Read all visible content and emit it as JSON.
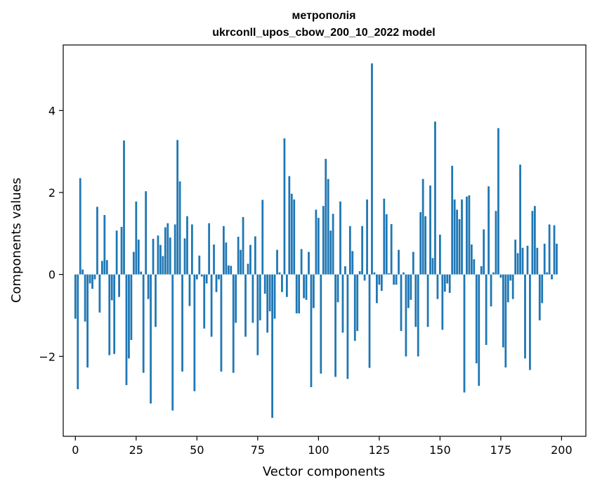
{
  "chart_data": {
    "type": "bar",
    "title": "метрополія",
    "subtitle": "ukrconll_upos_cbow_200_10_2022 model",
    "xlabel": "Vector components",
    "ylabel": "Components values",
    "xlim": [
      -5,
      210
    ],
    "ylim": [
      -3.95,
      5.6
    ],
    "xticks": [
      0,
      25,
      50,
      75,
      100,
      125,
      150,
      175,
      200
    ],
    "yticks": [
      -2,
      0,
      2,
      4
    ],
    "ytick_labels": [
      "−2",
      "0",
      "2",
      "4"
    ],
    "bar_color": "#1f77b4",
    "grid": false,
    "values": [
      -1.08,
      -2.8,
      2.35,
      0.12,
      -1.15,
      -2.27,
      -0.22,
      -0.35,
      -0.12,
      1.65,
      -0.93,
      0.33,
      1.45,
      0.35,
      -1.97,
      -0.63,
      -1.94,
      1.07,
      -0.55,
      1.16,
      3.27,
      -2.7,
      -2.05,
      -1.6,
      0.55,
      1.78,
      0.85,
      0.07,
      -2.4,
      2.03,
      -0.6,
      -3.15,
      0.87,
      -1.28,
      0.95,
      0.72,
      0.45,
      1.15,
      1.25,
      0.9,
      -3.32,
      1.22,
      3.28,
      2.27,
      -2.37,
      0.88,
      1.42,
      -0.77,
      1.22,
      -2.85,
      -0.12,
      0.46,
      -0.05,
      -1.32,
      -0.22,
      1.25,
      -1.52,
      0.73,
      -0.43,
      -0.12,
      -2.37,
      1.18,
      0.78,
      0.22,
      0.21,
      -2.4,
      -1.18,
      0.92,
      0.6,
      1.4,
      -1.52,
      0.26,
      0.72,
      -1.18,
      0.93,
      -1.97,
      -1.12,
      1.82,
      -0.47,
      -1.42,
      -0.9,
      -3.5,
      -1.08,
      0.6,
      0.05,
      -0.43,
      3.32,
      -0.55,
      2.4,
      1.97,
      1.83,
      -0.95,
      -0.95,
      0.62,
      -0.58,
      -0.62,
      0.55,
      -2.75,
      -0.82,
      1.58,
      1.38,
      -2.42,
      1.67,
      2.82,
      2.33,
      1.07,
      1.48,
      -2.5,
      -0.68,
      1.78,
      -1.42,
      0.2,
      -2.55,
      1.18,
      0.57,
      -1.62,
      -1.38,
      0.08,
      1.18,
      -0.15,
      1.83,
      -2.28,
      5.15,
      0.05,
      -0.7,
      -0.25,
      -0.4,
      1.85,
      1.47,
      0.03,
      1.23,
      -0.25,
      -0.25,
      0.6,
      -1.38,
      0.05,
      -2.0,
      -0.82,
      -0.62,
      0.55,
      -1.28,
      -2.0,
      1.52,
      2.33,
      1.42,
      -1.28,
      2.17,
      0.4,
      3.73,
      -0.6,
      0.97,
      -1.35,
      -0.42,
      -0.22,
      -0.45,
      2.65,
      1.83,
      1.58,
      1.35,
      1.83,
      -2.88,
      1.9,
      1.93,
      0.73,
      0.37,
      -2.17,
      -2.72,
      0.2,
      1.1,
      -1.72,
      2.15,
      -0.78,
      0.05,
      1.55,
      3.57,
      -0.08,
      -1.78,
      -2.27,
      -0.68,
      -0.15,
      -0.6,
      0.85,
      0.52,
      2.68,
      0.65,
      -2.05,
      0.7,
      -2.33,
      1.55,
      1.67,
      0.65,
      -1.12,
      -0.7,
      0.75,
      0.05,
      1.22,
      -0.12,
      1.2,
      0.75
    ]
  }
}
